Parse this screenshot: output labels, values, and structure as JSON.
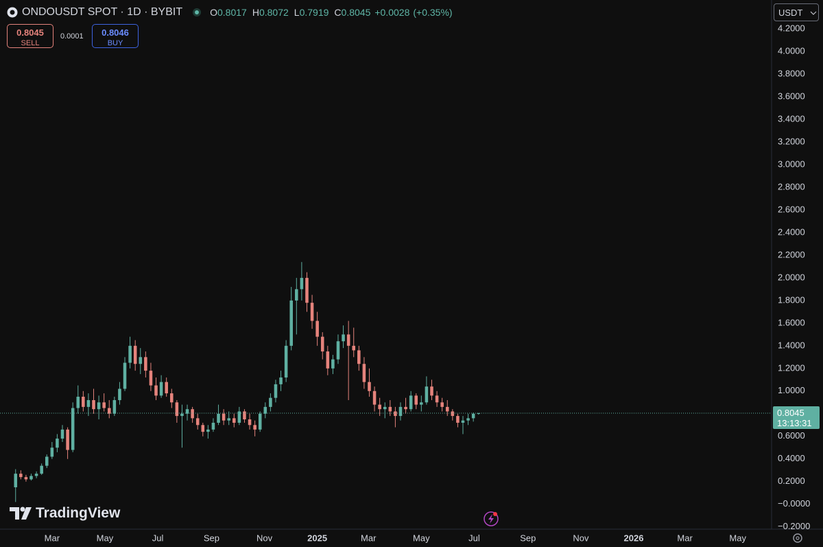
{
  "header": {
    "symbol": "ONDOUSDT SPOT · 1D · BYBIT",
    "o_label": "O",
    "h_label": "H",
    "l_label": "L",
    "c_label": "C",
    "change": "+0.0028",
    "change_pct": "(+0.35%)"
  },
  "trade": {
    "sell_price": "0.8045",
    "sell_label": "SELL",
    "spread": "0.0001",
    "buy_price": "0.8046",
    "buy_label": "BUY"
  },
  "currency": "USDT",
  "countdown": "13:13:31",
  "brand": "TradingView",
  "chart_data": {
    "type": "candlestick",
    "up_color": "#5fb0a2",
    "down_color": "#e5837c",
    "grid": false,
    "x": [
      18,
      24,
      30,
      36,
      42,
      48,
      54,
      60,
      66,
      72,
      78,
      84,
      90,
      96,
      102,
      108,
      114,
      120,
      126,
      132,
      138,
      144,
      150,
      156,
      162,
      168,
      174,
      180,
      186,
      192,
      198,
      204,
      210,
      216,
      222,
      228,
      234,
      240,
      246,
      252,
      258,
      264,
      270,
      276,
      282,
      288,
      294,
      300,
      306,
      312,
      318,
      324,
      330,
      336,
      342,
      348,
      354,
      360,
      366,
      372,
      378,
      384,
      390,
      396,
      402,
      408,
      414,
      420,
      426,
      432,
      438,
      444,
      450,
      456,
      462,
      468,
      474,
      480,
      486,
      492,
      498,
      504,
      510,
      516,
      522,
      528,
      534,
      540,
      546,
      552
    ],
    "open": [
      0.15,
      0.27,
      0.24,
      0.22,
      0.25,
      0.27,
      0.34,
      0.42,
      0.5,
      0.58,
      0.66,
      0.48,
      0.85,
      0.95,
      0.86,
      0.92,
      0.84,
      0.9,
      0.85,
      0.8,
      0.92,
      1.02,
      1.25,
      1.4,
      1.24,
      1.3,
      1.18,
      1.05,
      0.96,
      1.08,
      0.98,
      0.9,
      0.78,
      0.8,
      0.84,
      0.76,
      0.7,
      0.64,
      0.66,
      0.72,
      0.8,
      0.74,
      0.76,
      0.72,
      0.82,
      0.75,
      0.7,
      0.66,
      0.8,
      0.86,
      0.94,
      1.06,
      1.12,
      1.4,
      1.8,
      1.9,
      2.0,
      1.78,
      1.62,
      1.48,
      1.35,
      1.2,
      1.28,
      1.44,
      1.5,
      1.4,
      1.36,
      1.24,
      1.08,
      1.0,
      0.88,
      0.84,
      0.86,
      0.82,
      0.78,
      0.86,
      0.84,
      0.96,
      0.88,
      0.9,
      1.04,
      0.96,
      0.9,
      0.86,
      0.82,
      0.78,
      0.72,
      0.74,
      0.76,
      0.8017
    ],
    "high": [
      0.31,
      0.3,
      0.26,
      0.27,
      0.29,
      0.36,
      0.44,
      0.55,
      0.62,
      0.7,
      0.68,
      0.9,
      1.05,
      1.0,
      0.98,
      1.02,
      0.96,
      0.98,
      0.92,
      0.95,
      1.08,
      1.3,
      1.48,
      1.45,
      1.38,
      1.35,
      1.25,
      1.12,
      1.14,
      1.12,
      1.02,
      0.92,
      0.88,
      0.88,
      0.86,
      0.8,
      0.72,
      0.7,
      0.76,
      0.88,
      0.84,
      0.82,
      0.8,
      0.86,
      0.84,
      0.8,
      0.74,
      0.82,
      0.9,
      0.98,
      1.1,
      1.18,
      1.45,
      1.92,
      2.0,
      2.14,
      2.05,
      1.85,
      1.7,
      1.52,
      1.4,
      1.32,
      1.5,
      1.58,
      1.62,
      1.56,
      1.4,
      1.3,
      1.2,
      1.04,
      0.94,
      0.9,
      0.92,
      0.86,
      0.9,
      0.94,
      1.0,
      0.98,
      0.96,
      1.13,
      1.1,
      1.0,
      0.94,
      0.92,
      0.84,
      0.8,
      0.78,
      0.8,
      0.81,
      0.8072
    ],
    "low": [
      0.02,
      0.22,
      0.2,
      0.21,
      0.23,
      0.26,
      0.32,
      0.4,
      0.46,
      0.55,
      0.4,
      0.46,
      0.8,
      0.82,
      0.78,
      0.8,
      0.75,
      0.82,
      0.76,
      0.78,
      0.88,
      1.0,
      1.2,
      1.18,
      1.15,
      1.12,
      1.0,
      0.92,
      0.94,
      0.95,
      0.85,
      0.72,
      0.5,
      0.74,
      0.72,
      0.66,
      0.6,
      0.58,
      0.64,
      0.7,
      0.7,
      0.7,
      0.68,
      0.7,
      0.72,
      0.66,
      0.6,
      0.64,
      0.76,
      0.82,
      0.9,
      1.0,
      1.08,
      1.36,
      1.5,
      1.8,
      1.7,
      1.55,
      1.4,
      1.28,
      1.14,
      1.15,
      1.24,
      1.38,
      0.92,
      1.3,
      1.18,
      1.02,
      0.95,
      0.82,
      0.78,
      0.76,
      0.78,
      0.68,
      0.74,
      0.8,
      0.82,
      0.84,
      0.82,
      0.88,
      0.92,
      0.86,
      0.82,
      0.78,
      0.74,
      0.68,
      0.62,
      0.7,
      0.73,
      0.7919
    ],
    "close": [
      0.27,
      0.24,
      0.22,
      0.25,
      0.27,
      0.34,
      0.42,
      0.5,
      0.58,
      0.66,
      0.48,
      0.85,
      0.95,
      0.86,
      0.92,
      0.84,
      0.9,
      0.85,
      0.8,
      0.92,
      1.02,
      1.25,
      1.4,
      1.24,
      1.3,
      1.18,
      1.05,
      0.96,
      1.08,
      0.98,
      0.9,
      0.78,
      0.8,
      0.84,
      0.76,
      0.7,
      0.64,
      0.66,
      0.72,
      0.8,
      0.74,
      0.76,
      0.72,
      0.82,
      0.75,
      0.7,
      0.66,
      0.8,
      0.86,
      0.94,
      1.06,
      1.12,
      1.4,
      1.8,
      1.9,
      2.0,
      1.78,
      1.62,
      1.48,
      1.35,
      1.2,
      1.28,
      1.44,
      1.5,
      1.4,
      1.36,
      1.24,
      1.08,
      1.0,
      0.88,
      0.84,
      0.86,
      0.82,
      0.78,
      0.86,
      0.84,
      0.96,
      0.88,
      0.9,
      1.04,
      0.96,
      0.9,
      0.86,
      0.82,
      0.78,
      0.72,
      0.74,
      0.76,
      0.8,
      0.8045
    ],
    "xlim": [
      0,
      890
    ],
    "xticks": [
      {
        "value": 60,
        "label": "Mar"
      },
      {
        "value": 121,
        "label": "May"
      },
      {
        "value": 182,
        "label": "Jul"
      },
      {
        "value": 244,
        "label": "Sep"
      },
      {
        "value": 305,
        "label": "Nov"
      },
      {
        "value": 366,
        "label": "2025"
      },
      {
        "value": 425,
        "label": "Mar"
      },
      {
        "value": 486,
        "label": "May"
      },
      {
        "value": 547,
        "label": "Jul"
      },
      {
        "value": 609,
        "label": "Sep"
      },
      {
        "value": 670,
        "label": "Nov"
      },
      {
        "value": 731,
        "label": "2026"
      },
      {
        "value": 790,
        "label": "Mar"
      },
      {
        "value": 851,
        "label": "May"
      }
    ],
    "ylim": [
      -0.22,
      4.455
    ],
    "yticks": [
      {
        "value": -0.2,
        "label": "−0.2000"
      },
      {
        "value": 0,
        "label": "−0.0000"
      },
      {
        "value": 0.2,
        "label": "0.2000"
      },
      {
        "value": 0.4,
        "label": "0.4000"
      },
      {
        "value": 0.6,
        "label": "0.6000"
      },
      {
        "value": 0.8,
        "label": "0.8000"
      },
      {
        "value": 1.0,
        "label": "1.0000"
      },
      {
        "value": 1.2,
        "label": "1.2000"
      },
      {
        "value": 1.4,
        "label": "1.4000"
      },
      {
        "value": 1.6,
        "label": "1.6000"
      },
      {
        "value": 1.8,
        "label": "1.8000"
      },
      {
        "value": 2.0,
        "label": "2.0000"
      },
      {
        "value": 2.2,
        "label": "2.2000"
      },
      {
        "value": 2.4,
        "label": "2.4000"
      },
      {
        "value": 2.6,
        "label": "2.6000"
      },
      {
        "value": 2.8,
        "label": "2.8000"
      },
      {
        "value": 3.0,
        "label": "3.0000"
      },
      {
        "value": 3.2,
        "label": "3.2000"
      },
      {
        "value": 3.4,
        "label": "3.4000"
      },
      {
        "value": 3.6,
        "label": "3.6000"
      },
      {
        "value": 3.8,
        "label": "3.8000"
      },
      {
        "value": 4.0,
        "label": "4.0000"
      },
      {
        "value": 4.2,
        "label": "4.2000"
      }
    ]
  }
}
